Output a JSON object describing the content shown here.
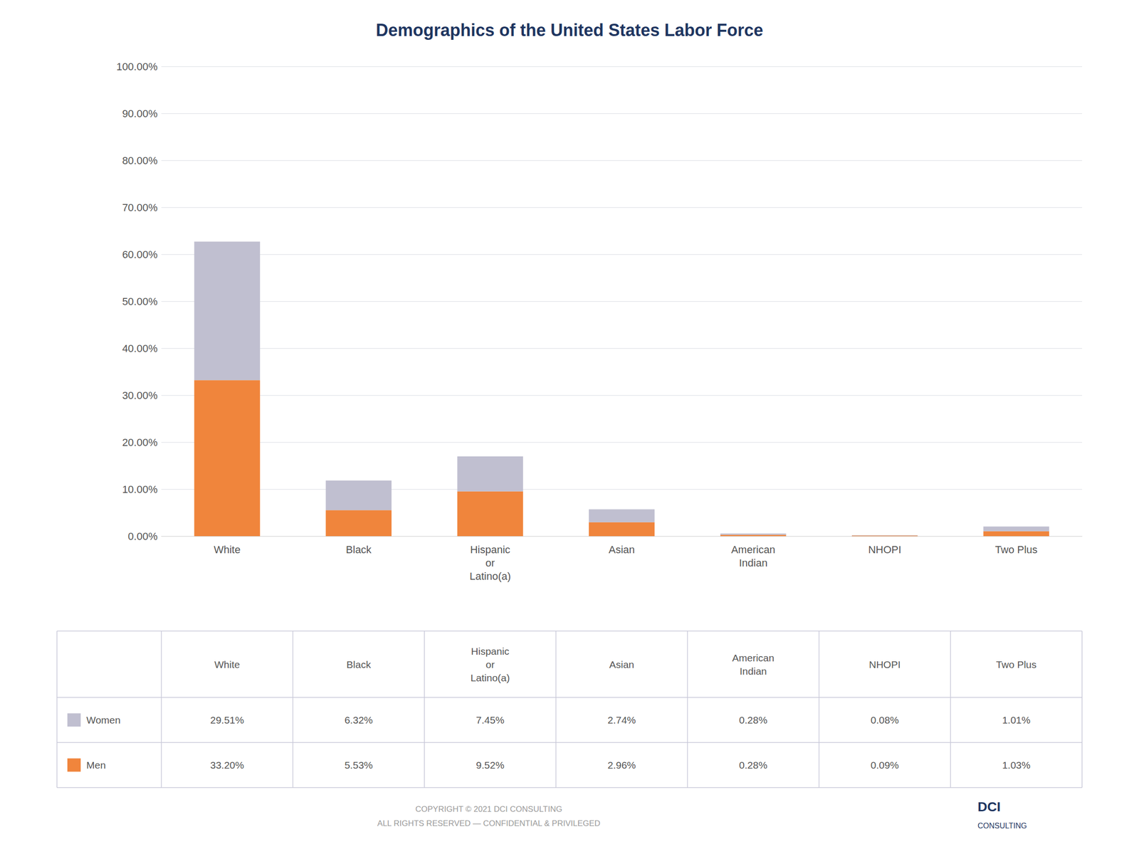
{
  "chart_data": {
    "type": "bar",
    "title": "Demographics of the United States Labor Force",
    "categories": [
      "White",
      "Black",
      "Hispanic\nor\nLatino(a)",
      "Asian",
      "American\nIndian",
      "NHOPI",
      "Two Plus"
    ],
    "series": [
      {
        "name": "Men",
        "color": "#f0853c",
        "values": [
          33.2,
          5.53,
          9.52,
          2.96,
          0.28,
          0.09,
          1.03
        ],
        "value_labels": [
          "33.20%",
          "5.53%",
          "9.52%",
          "2.96%",
          "0.28%",
          "0.09%",
          "1.03%"
        ]
      },
      {
        "name": "Women",
        "color": "#c0bfd0",
        "values": [
          29.51,
          6.32,
          7.45,
          2.74,
          0.28,
          0.08,
          1.01
        ],
        "value_labels": [
          "29.51%",
          "6.32%",
          "7.45%",
          "2.74%",
          "0.28%",
          "0.08%",
          "1.01%"
        ]
      }
    ],
    "stacked": true,
    "ylim": [
      0,
      100
    ],
    "yticks": [
      {
        "value": 0,
        "label": "0.00%"
      },
      {
        "value": 10,
        "label": "10.00%"
      },
      {
        "value": 20,
        "label": "20.00%"
      },
      {
        "value": 30,
        "label": "30.00%"
      },
      {
        "value": 40,
        "label": "40.00%"
      },
      {
        "value": 50,
        "label": "50.00%"
      },
      {
        "value": 60,
        "label": "60.00%"
      },
      {
        "value": 70,
        "label": "70.00%"
      },
      {
        "value": 80,
        "label": "80.00%"
      },
      {
        "value": 90,
        "label": "90.00%"
      },
      {
        "value": 100,
        "label": "100.00%"
      }
    ],
    "grid": true,
    "annotations": [
      "COPYRIGHT © 2021 DCI CONSULTING\nALL RIGHTS RESERVED — CONFIDENTIAL & PRIVILEGED",
      "DCI",
      "CONSULTING"
    ]
  }
}
